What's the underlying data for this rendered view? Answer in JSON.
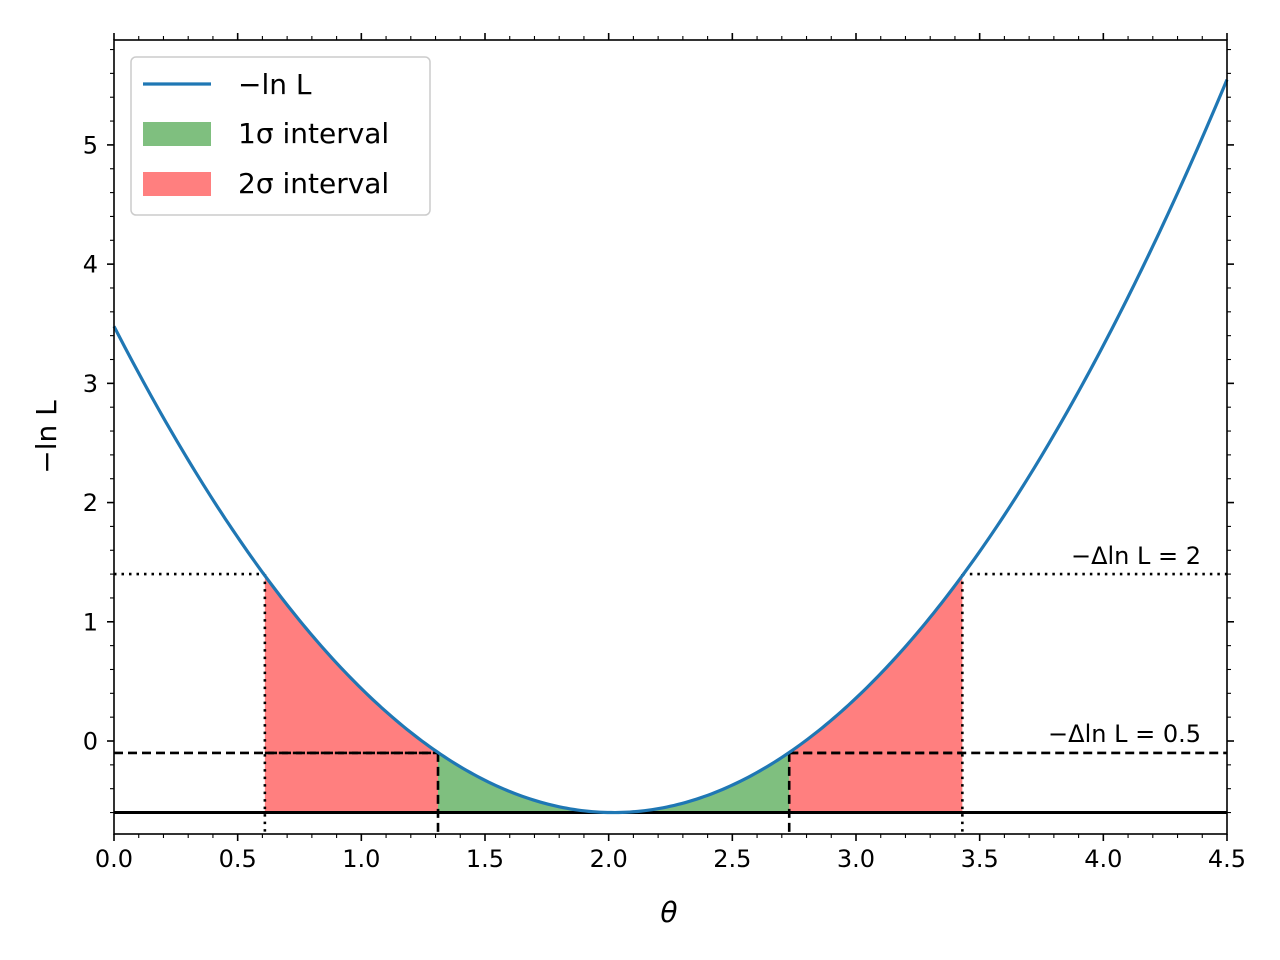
{
  "chart_data": {
    "type": "line",
    "xlabel": "θ",
    "ylabel": "−ln L",
    "xlim": [
      0.0,
      4.5
    ],
    "ylim": [
      -0.78,
      5.88
    ],
    "xticks": [
      "0.0",
      "0.5",
      "1.0",
      "1.5",
      "2.0",
      "2.5",
      "3.0",
      "3.5",
      "4.0",
      "4.5"
    ],
    "xtick_values": [
      0.0,
      0.5,
      1.0,
      1.5,
      2.0,
      2.5,
      3.0,
      3.5,
      4.0,
      4.5
    ],
    "yticks": [
      "0",
      "1",
      "2",
      "3",
      "4",
      "5"
    ],
    "ytick_values": [
      0,
      1,
      2,
      3,
      4,
      5
    ],
    "grid": false,
    "legend_position": "top-left",
    "legend": [
      {
        "label": "−ln L",
        "kind": "line",
        "color": "#1f77b4"
      },
      {
        "label": "1σ interval",
        "kind": "patch",
        "color": "#7fbf7f"
      },
      {
        "label": "2σ interval",
        "kind": "patch",
        "color": "#ff7f7f"
      }
    ],
    "curve": {
      "name": "−ln L",
      "form": "parabola",
      "minimum_theta": 2.02,
      "minimum_value": -0.6,
      "x": [
        0.0,
        0.61,
        1.31,
        2.02,
        2.73,
        3.43,
        4.5
      ],
      "y": [
        3.48,
        1.4,
        -0.1,
        -0.6,
        -0.1,
        1.4,
        5.56
      ],
      "color": "#1f77b4"
    },
    "intervals": {
      "one_sigma": [
        1.31,
        2.73
      ],
      "two_sigma": [
        0.61,
        3.43
      ]
    },
    "reference_lines": [
      {
        "label": "−Δln L = 2",
        "y": 1.4,
        "style": "dotted"
      },
      {
        "label": "−Δln L = 0.5",
        "y": -0.1,
        "style": "dashed"
      },
      {
        "label": "",
        "y": -0.6,
        "style": "solid"
      }
    ],
    "colors": {
      "curve": "#1f77b4",
      "one_sigma_fill": "#7fbf7f",
      "two_sigma_fill": "#ff7f7f"
    }
  }
}
